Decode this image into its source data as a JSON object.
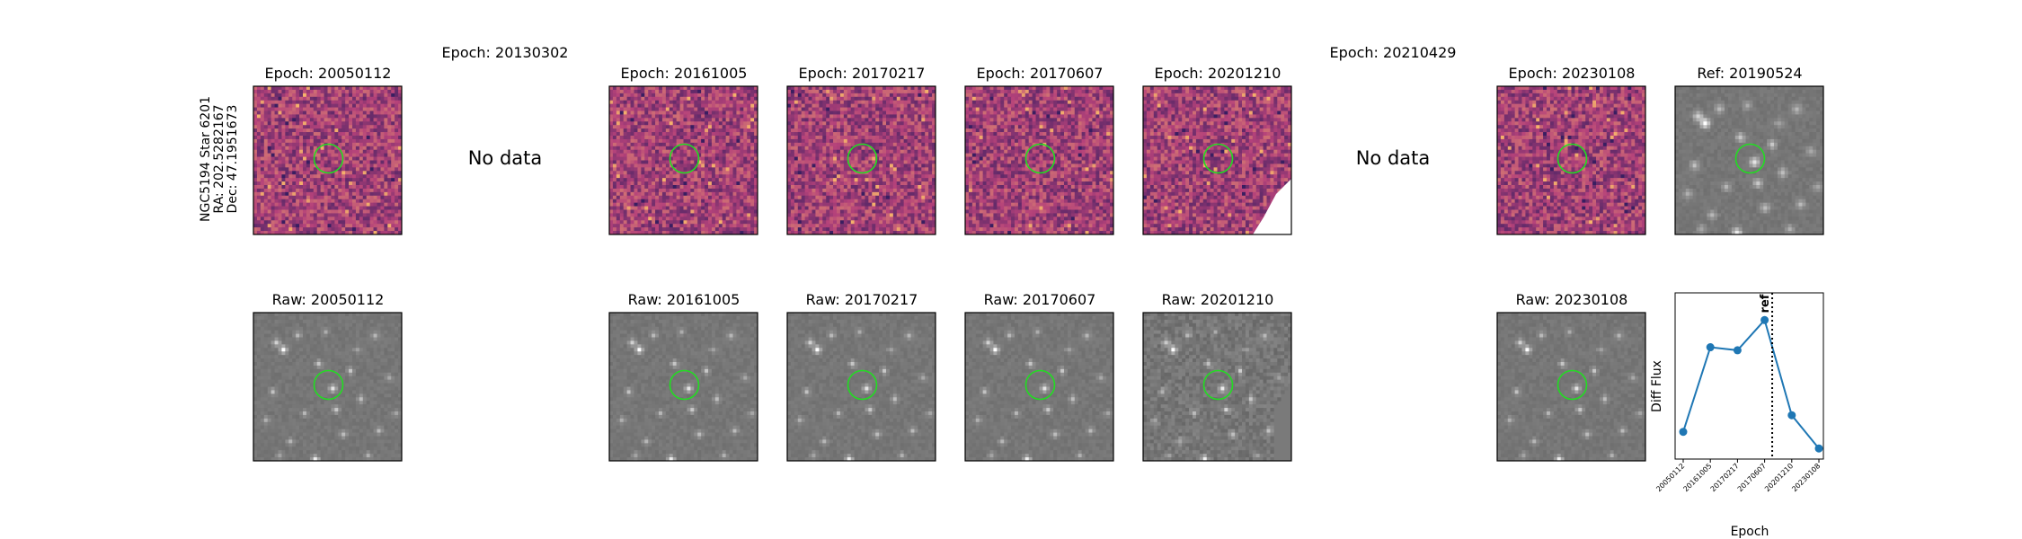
{
  "object": {
    "name": "NGC5194 Star 6201",
    "ra": "RA: 202.5282167",
    "dec": "Dec: 47.1951673"
  },
  "no_data_label": "No data",
  "epochs": [
    {
      "title": "Epoch: 20050112",
      "raw": "Raw: 20050112",
      "has_data": true
    },
    {
      "title": "Epoch: 20130302",
      "raw": "",
      "has_data": false
    },
    {
      "title": "Epoch: 20161005",
      "raw": "Raw: 20161005",
      "has_data": true
    },
    {
      "title": "Epoch: 20170217",
      "raw": "Raw: 20170217",
      "has_data": true
    },
    {
      "title": "Epoch: 20170607",
      "raw": "Raw: 20170607",
      "has_data": true
    },
    {
      "title": "Epoch: 20201210",
      "raw": "Raw: 20201210",
      "has_data": true,
      "masked_corner": true
    },
    {
      "title": "Epoch: 20210429",
      "raw": "",
      "has_data": false
    },
    {
      "title": "Epoch: 20230108",
      "raw": "Raw: 20230108",
      "has_data": true
    }
  ],
  "reference": {
    "title": "Ref: 20190524"
  },
  "colors": {
    "diff_low": "#2b1a5e",
    "diff_mid": "#b5427a",
    "diff_high": "#f6b36b",
    "aperture": "#22dd22",
    "raw_bg": "#7a7a7a",
    "series": "#1f77b4"
  },
  "chart_data": {
    "type": "line",
    "categories": [
      "20050112",
      "20161005",
      "20170217",
      "20170607",
      "20201210",
      "20230108"
    ],
    "values": [
      0.08,
      0.64,
      0.62,
      0.82,
      0.19,
      -0.03
    ],
    "ylim": [
      -0.1,
      1.0
    ],
    "xlabel": "Epoch",
    "ylabel": "Diff Flux",
    "ref_marker": {
      "label": "ref",
      "x_between": [
        "20170607",
        "20201210"
      ],
      "fraction": 0.28
    },
    "grid": false,
    "y_ticks_visible": false
  }
}
